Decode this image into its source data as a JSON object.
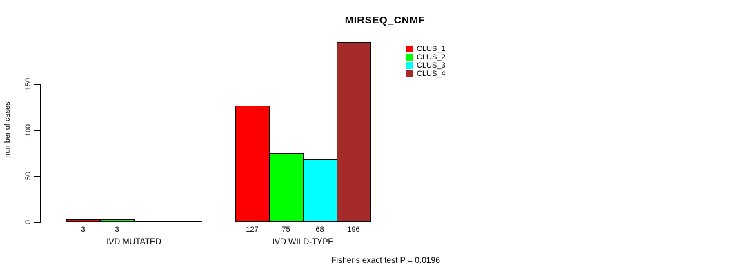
{
  "title": "MIRSEQ_CNMF",
  "y_axis_label": "number of cases",
  "footnote": "Fisher's exact test P = 0.0196",
  "chart_data": {
    "type": "bar",
    "title": "MIRSEQ_CNMF",
    "xlabel": "",
    "ylabel": "number of cases",
    "categories": [
      "IVD MUTATED",
      "IVD WILD-TYPE"
    ],
    "series": [
      {
        "name": "CLUS_1",
        "color": "#FF0000",
        "values": [
          3,
          127
        ]
      },
      {
        "name": "CLUS_2",
        "color": "#00FF00",
        "values": [
          3,
          75
        ]
      },
      {
        "name": "CLUS_3",
        "color": "#00FFFF",
        "values": [
          0,
          68
        ]
      },
      {
        "name": "CLUS_4",
        "color": "#A52A2A",
        "values": [
          0,
          196
        ]
      }
    ],
    "bar_labels": [
      [
        "3",
        "3",
        "",
        ""
      ],
      [
        "127",
        "75",
        "68",
        "196"
      ]
    ],
    "y_ticks": [
      0,
      50,
      100,
      150
    ],
    "ylim": [
      0,
      150
    ],
    "grid": false,
    "legend_position": "top-right",
    "legend_entries": [
      "CLUS_1",
      "CLUS_2",
      "CLUS_3",
      "CLUS_4"
    ],
    "annotation": "Fisher's exact test P = 0.0196"
  }
}
